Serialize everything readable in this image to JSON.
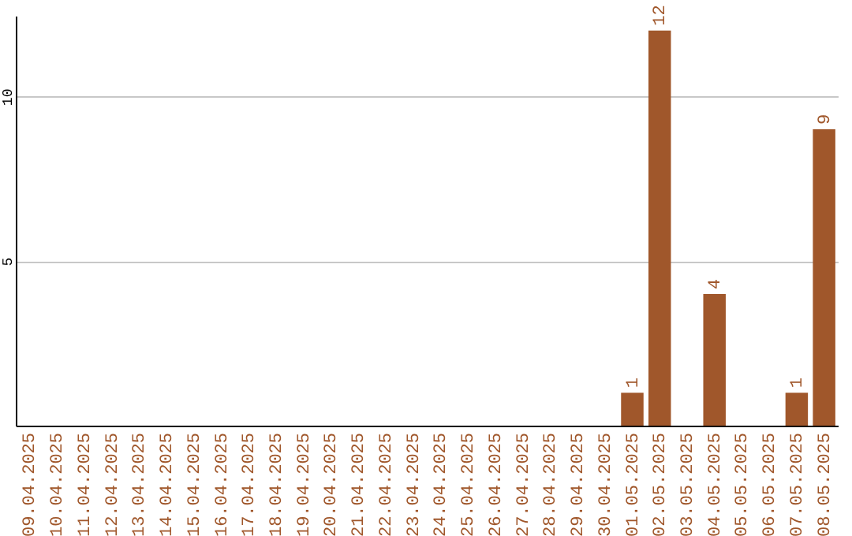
{
  "chart_data": {
    "type": "bar",
    "categories": [
      "09.04.2025",
      "10.04.2025",
      "11.04.2025",
      "12.04.2025",
      "13.04.2025",
      "14.04.2025",
      "15.04.2025",
      "16.04.2025",
      "17.04.2025",
      "18.04.2025",
      "19.04.2025",
      "20.04.2025",
      "21.04.2025",
      "22.04.2025",
      "23.04.2025",
      "24.04.2025",
      "25.04.2025",
      "26.04.2025",
      "27.04.2025",
      "28.04.2025",
      "29.04.2025",
      "30.04.2025",
      "01.05.2025",
      "02.05.2025",
      "03.05.2025",
      "04.05.2025",
      "05.05.2025",
      "06.05.2025",
      "07.05.2025",
      "08.05.2025"
    ],
    "values": [
      0,
      0,
      0,
      0,
      0,
      0,
      0,
      0,
      0,
      0,
      0,
      0,
      0,
      0,
      0,
      0,
      0,
      0,
      0,
      0,
      0,
      0,
      1,
      12,
      0,
      4,
      0,
      0,
      1,
      9
    ],
    "value_labels": [
      null,
      null,
      null,
      null,
      null,
      null,
      null,
      null,
      null,
      null,
      null,
      null,
      null,
      null,
      null,
      null,
      null,
      null,
      null,
      null,
      null,
      null,
      "1",
      "12",
      null,
      "4",
      null,
      null,
      "1",
      "9"
    ],
    "color": "#a0572b",
    "ylim": [
      0,
      12.45
    ],
    "yticks": [
      5,
      10
    ],
    "grid": "y"
  }
}
